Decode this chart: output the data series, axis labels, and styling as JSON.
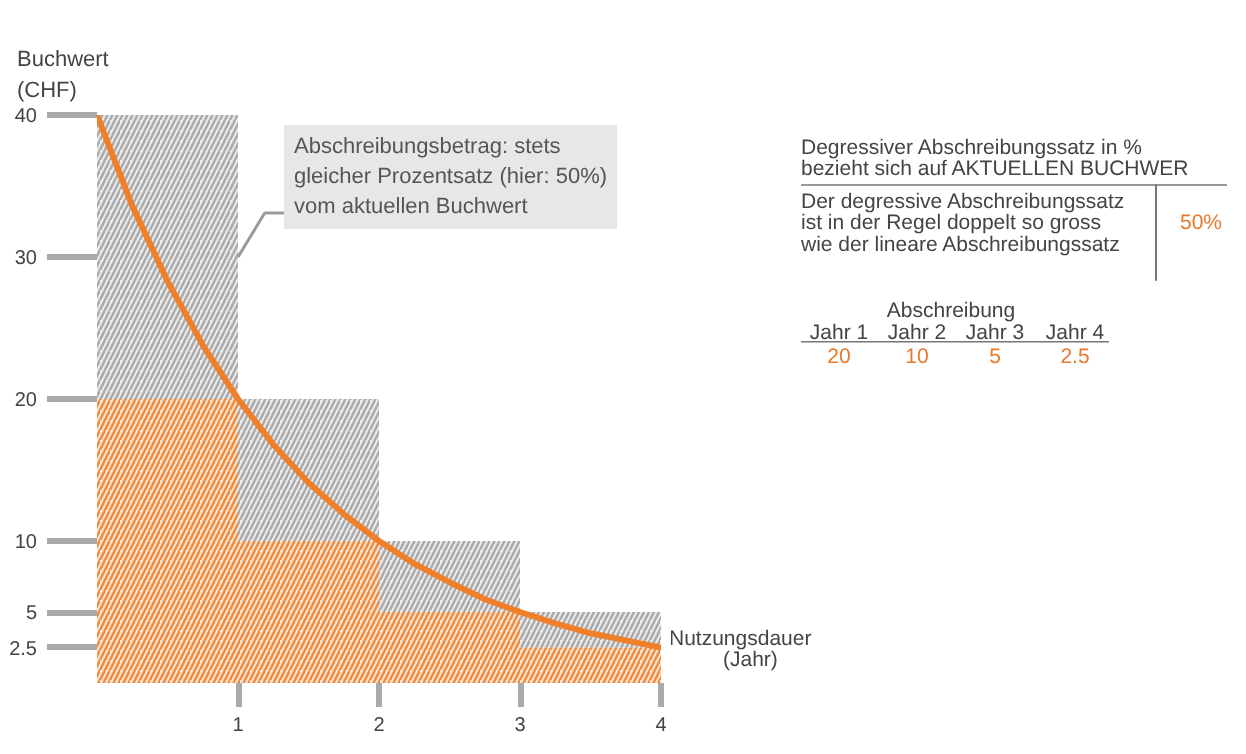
{
  "chart_data": {
    "type": "bar",
    "stacked": true,
    "xlabel": "Nutzungsdauer\n(Jahr)",
    "ylabel": "Buchwert\n(CHF)",
    "x": [
      0.5,
      1.5,
      2.5,
      3.5
    ],
    "series": [
      {
        "color": "#f08a3c",
        "values": [
          20,
          10,
          5,
          2.5
        ]
      },
      {
        "color": "#a9a9a9",
        "values": [
          20,
          10,
          5,
          2.5
        ]
      },
      {
        "type": "line",
        "color": "#f07f2a",
        "x": [
          0,
          0.25,
          0.5,
          0.75,
          1,
          1.25,
          1.5,
          1.75,
          2,
          2.25,
          2.5,
          2.75,
          3,
          3.25,
          3.5,
          3.75,
          4
        ],
        "values": [
          40,
          33.6,
          28.3,
          23.8,
          20,
          16.8,
          14.1,
          11.9,
          10,
          8.4,
          7.1,
          5.9,
          5,
          4.2,
          3.5,
          3.0,
          2.5
        ]
      }
    ],
    "xlim": [
      0,
      4
    ],
    "ylim": [
      0,
      40
    ],
    "xticks": [
      1,
      2,
      3,
      4
    ],
    "yticks": [
      2.5,
      5,
      10,
      20,
      30,
      40
    ],
    "grid": false,
    "annotations": [
      {
        "text": "Abschreibungsbetrag: stets\ngleicher Prozentsatz (hier: 50%)\nvom aktuellen Buchwert",
        "x": 1,
        "y": 30
      },
      "Degressiver Abschreibungssatz in %\nbezieht sich auf AKTUELLEN BUCHWER",
      "Der degressive Abschreibungssatz\nist in der Regel doppelt so gross\nwie der lineare Abschreibungssatz",
      "50%",
      "Abschreibung",
      "Jahr 1",
      "Jahr 2",
      "Jahr 3",
      "Jahr 4",
      "20",
      "10",
      "5",
      "2.5"
    ]
  }
}
